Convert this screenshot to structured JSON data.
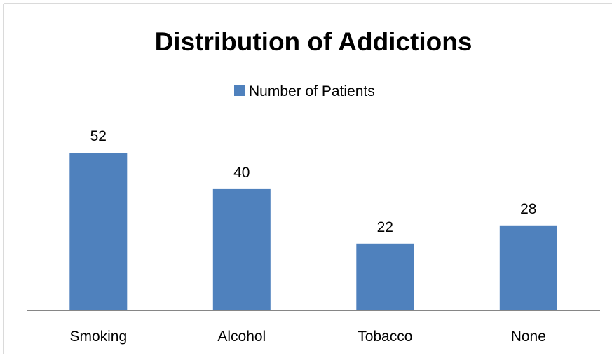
{
  "chart_data": {
    "type": "bar",
    "title": "Distribution of Addictions",
    "categories": [
      "Smoking",
      "Alcohol",
      "Tobacco",
      "None"
    ],
    "series": [
      {
        "name": "Number of Patients",
        "values": [
          52,
          40,
          22,
          28
        ],
        "color": "#4f81bd"
      }
    ],
    "data_labels": true,
    "legend_position": "top",
    "grid": false,
    "ylim": [
      0,
      52
    ]
  }
}
